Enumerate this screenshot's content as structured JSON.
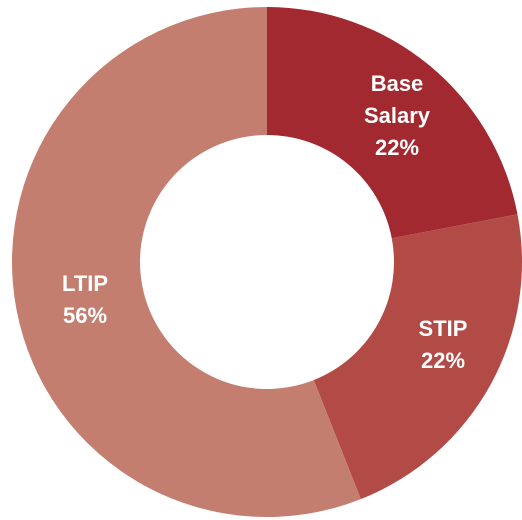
{
  "chart_data": {
    "type": "donut",
    "categories": [
      "Base Salary",
      "STIP",
      "LTIP"
    ],
    "values": [
      22,
      22,
      56
    ],
    "value_labels": [
      "22%",
      "22%",
      "56%"
    ],
    "colors": [
      "#a2292f",
      "#b24a45",
      "#c47e70"
    ]
  }
}
